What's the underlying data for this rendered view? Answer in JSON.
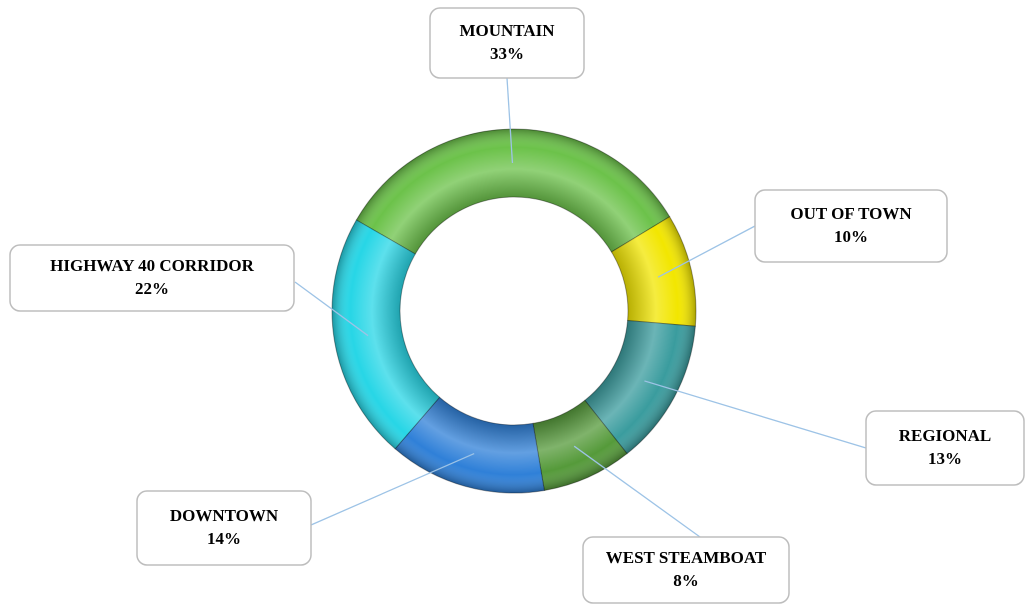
{
  "chart_data": {
    "type": "donut",
    "categories": [
      "MOUNTAIN",
      "OUT OF TOWN",
      "REGIONAL",
      "WEST STEAMBOAT",
      "DOWNTOWN",
      "HIGHWAY 40 CORRIDOR"
    ],
    "values": [
      33,
      10,
      13,
      8,
      14,
      22
    ],
    "value_labels": [
      "33%",
      "10%",
      "13%",
      "8%",
      "14%",
      "22%"
    ],
    "colors": [
      "#6cc24a",
      "#f2e600",
      "#3a9c9e",
      "#559a3a",
      "#2f80d8",
      "#27d6e6"
    ]
  }
}
